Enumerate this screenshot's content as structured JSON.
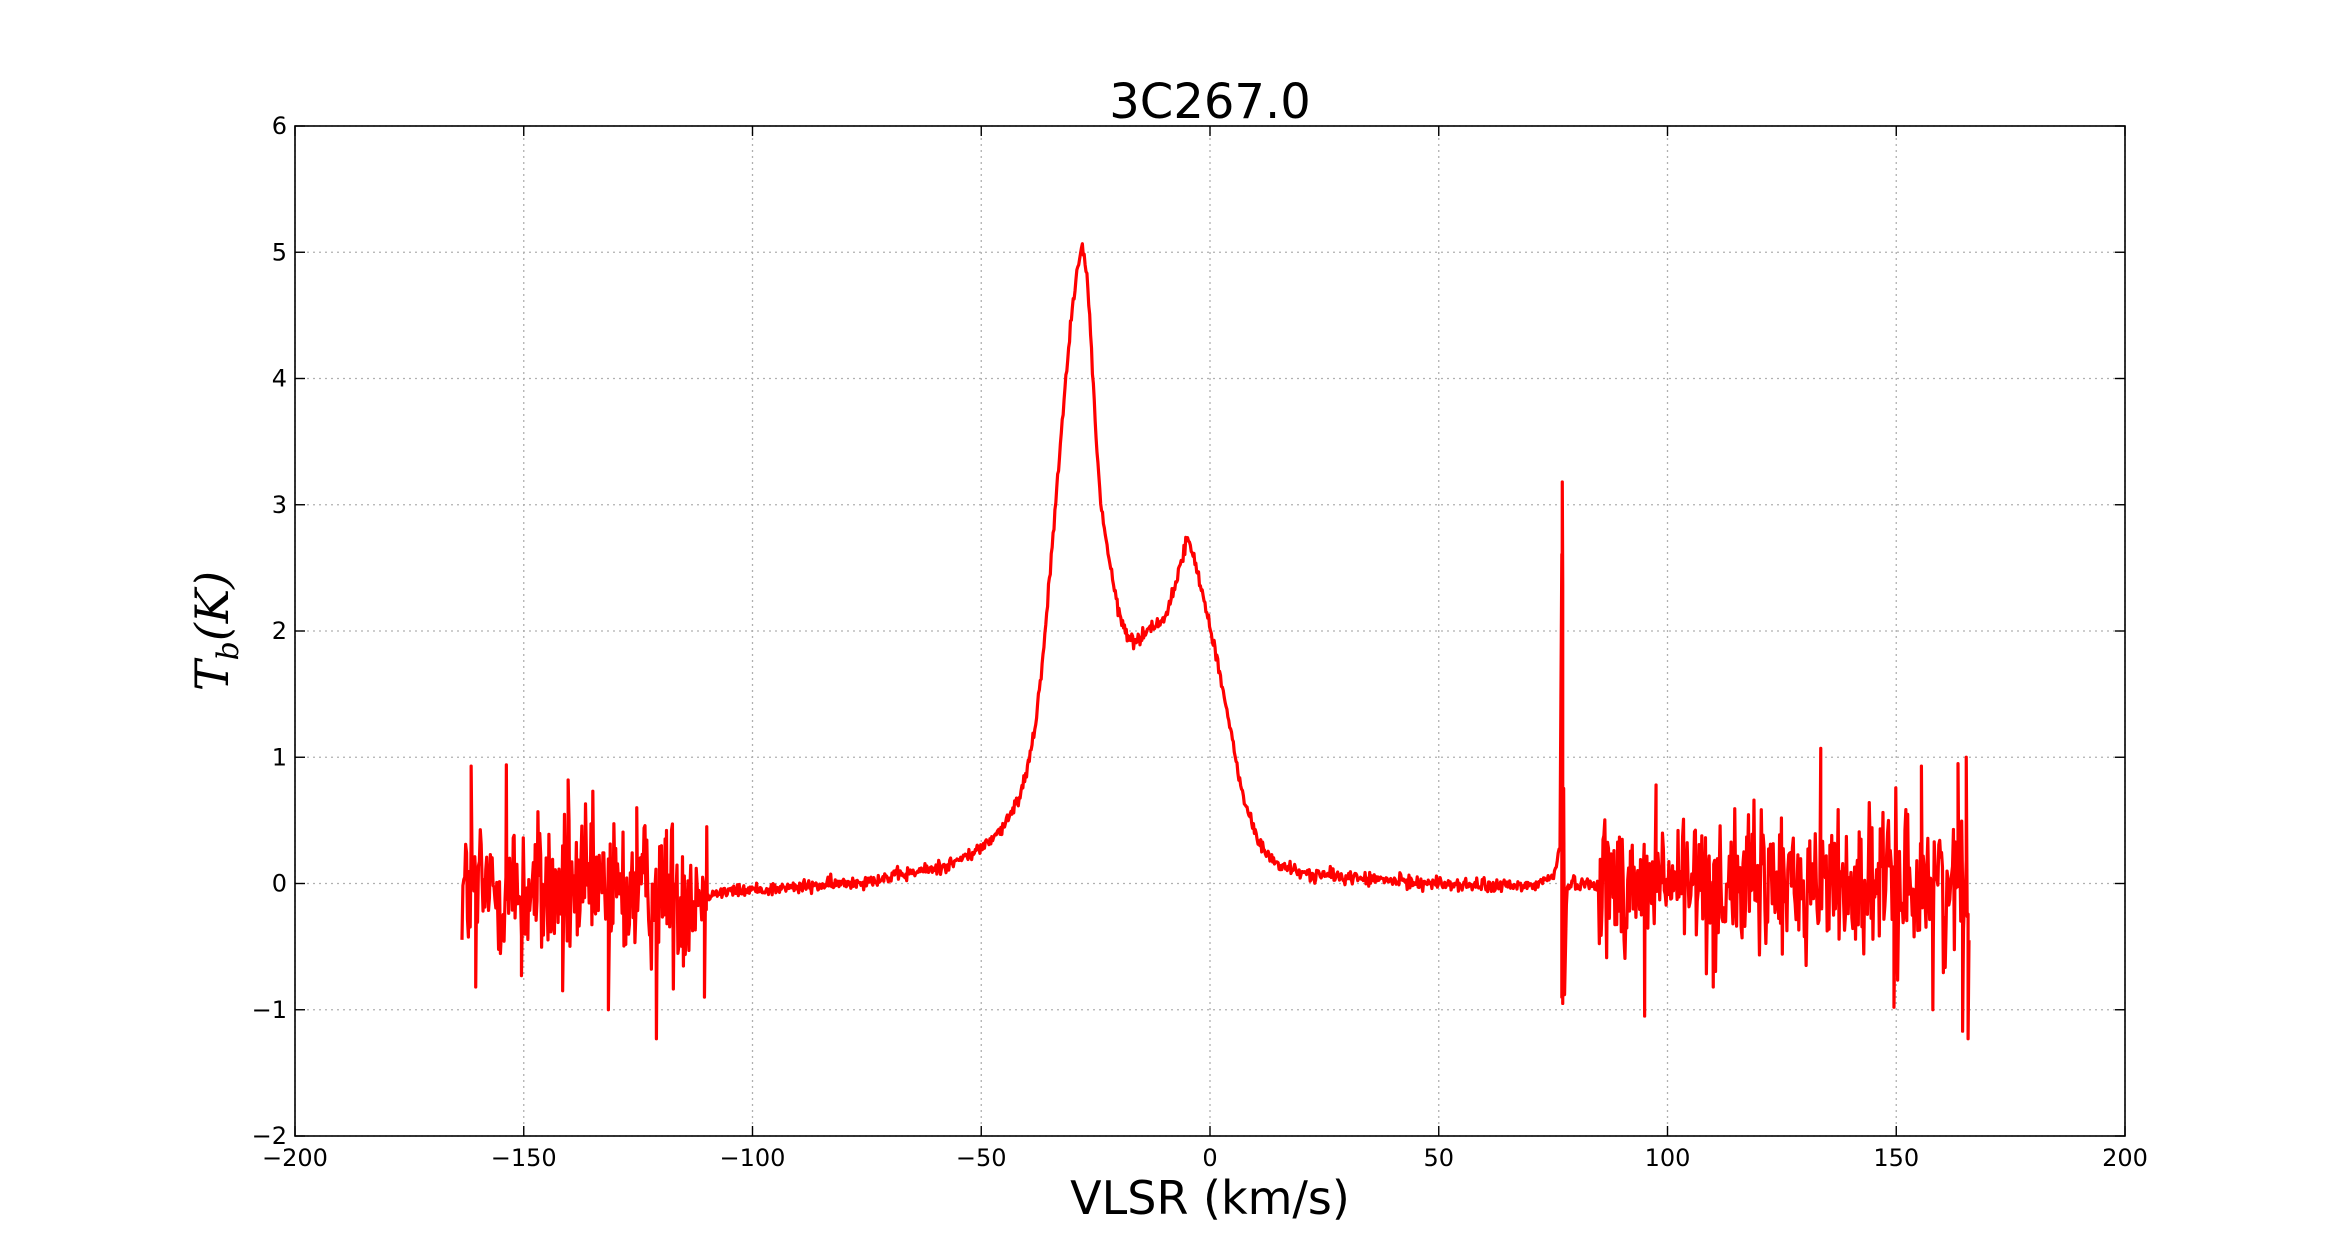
{
  "chart_data": {
    "type": "line",
    "title": "3C267.0",
    "xlabel": "VLSR (km/s)",
    "ylabel": {
      "main_before": "T",
      "subscript": "b",
      "main_after": "(K)"
    },
    "xlim": [
      -200,
      200
    ],
    "ylim": [
      -2,
      6
    ],
    "xticks": [
      -200,
      -150,
      -100,
      -50,
      0,
      50,
      100,
      150,
      200
    ],
    "xtick_labels": [
      "−200",
      "−150",
      "−100",
      "−50",
      "0",
      "50",
      "100",
      "150",
      "200"
    ],
    "yticks": [
      -2,
      -1,
      0,
      1,
      2,
      3,
      4,
      5,
      6
    ],
    "ytick_labels": [
      "−2",
      "−1",
      "0",
      "1",
      "2",
      "3",
      "4",
      "5",
      "6"
    ],
    "grid": true,
    "series": [
      {
        "color": "#ff0000",
        "x_range": [
          -163.5,
          166.0
        ],
        "x": [
          -164,
          -110,
          -100,
          -90,
          -80,
          -70,
          -60,
          -55,
          -50,
          -45,
          -42,
          -40,
          -38,
          -36,
          -34,
          -32,
          -30,
          -29,
          -28,
          -27,
          -26,
          -25,
          -24,
          -22,
          -20,
          -18,
          -16,
          -15,
          -14,
          -12,
          -10,
          -8,
          -6,
          -5,
          -4,
          -3,
          -2,
          -1,
          0,
          2,
          4,
          6,
          8,
          10,
          12,
          15,
          20,
          30,
          40,
          50,
          60,
          70,
          75,
          76.5,
          77,
          77.5,
          78,
          80,
          85,
          100,
          120,
          140,
          160,
          166
        ],
        "y": [
          -0.05,
          -0.08,
          -0.05,
          -0.03,
          0.0,
          0.05,
          0.12,
          0.18,
          0.28,
          0.45,
          0.65,
          0.9,
          1.3,
          2.0,
          2.9,
          3.8,
          4.6,
          4.9,
          5.05,
          4.85,
          4.3,
          3.6,
          3.05,
          2.55,
          2.15,
          1.95,
          1.92,
          1.95,
          2.0,
          2.05,
          2.1,
          2.3,
          2.6,
          2.72,
          2.65,
          2.5,
          2.35,
          2.2,
          2.05,
          1.7,
          1.3,
          0.9,
          0.6,
          0.38,
          0.25,
          0.15,
          0.08,
          0.05,
          0.02,
          0.0,
          -0.02,
          -0.02,
          0.05,
          0.3,
          3.18,
          -0.9,
          0.0,
          0.0,
          0.0,
          0.0,
          0.0,
          0.0,
          0.0,
          -0.05
        ],
        "noise": {
          "ranges": [
            [
              -164,
              -110
            ],
            [
              -110,
              85
            ],
            [
              85,
              166
            ]
          ],
          "amplitude": [
            0.65,
            0.06,
            0.6
          ]
        },
        "extremes": [
          {
            "x": -161.5,
            "y": 0.93
          },
          {
            "x": -160.5,
            "y": -0.82
          },
          {
            "x": -153.8,
            "y": 0.94
          },
          {
            "x": -150.5,
            "y": -0.73
          },
          {
            "x": -141.5,
            "y": -0.85
          },
          {
            "x": -140.3,
            "y": 0.82
          },
          {
            "x": -131.5,
            "y": -1.0
          },
          {
            "x": -125.3,
            "y": 0.6
          },
          {
            "x": -121.0,
            "y": -1.23
          },
          {
            "x": -118.8,
            "y": 0.42
          },
          {
            "x": -110.5,
            "y": -0.9
          },
          {
            "x": -110.0,
            "y": 0.45
          },
          {
            "x": 95.0,
            "y": -1.05
          },
          {
            "x": 97.5,
            "y": 0.78
          },
          {
            "x": 110.0,
            "y": -0.82
          },
          {
            "x": 133.5,
            "y": 1.07
          },
          {
            "x": 149.5,
            "y": -0.98
          },
          {
            "x": 155.5,
            "y": 0.93
          },
          {
            "x": 158.0,
            "y": -1.0
          },
          {
            "x": 163.5,
            "y": 0.95
          },
          {
            "x": 164.5,
            "y": -1.17
          },
          {
            "x": 165.3,
            "y": 1.0
          },
          {
            "x": 165.7,
            "y": -1.23
          }
        ]
      }
    ]
  }
}
